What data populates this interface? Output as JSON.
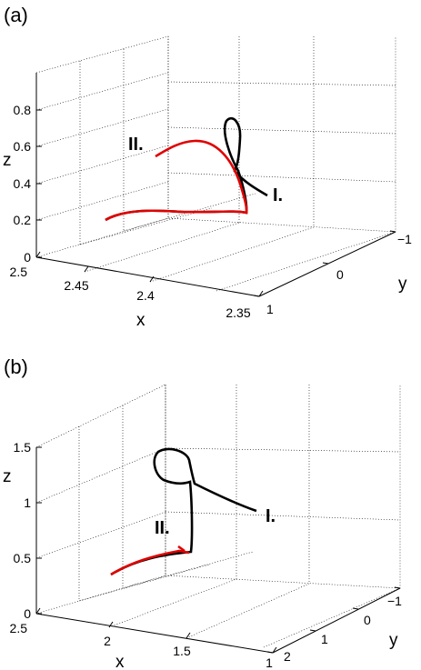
{
  "chart_data": [
    {
      "type": "line",
      "panel_label": "(a)",
      "xlabel": "x",
      "ylabel": "y",
      "zlabel": "z",
      "x_ticks": [
        "2.5",
        "2.45",
        "2.4",
        "2.35"
      ],
      "y_ticks": [
        "1",
        "0",
        "−1"
      ],
      "z_ticks": [
        "0",
        "0.2",
        "0.4",
        "0.6",
        "0.8"
      ],
      "xlim": [
        2.35,
        2.5
      ],
      "ylim": [
        -1,
        1
      ],
      "zlim": [
        0,
        0.8
      ],
      "grid": true,
      "series": [
        {
          "name": "I.",
          "color": "#000000",
          "points": [
            [
              2.48,
              0.6,
              0.2
            ],
            [
              2.36,
              0.2,
              0.23
            ],
            [
              2.35,
              0.1,
              0.6
            ],
            [
              2.36,
              0.3,
              0.74
            ],
            [
              2.34,
              -0.6,
              0.45
            ]
          ]
        },
        {
          "name": "II.",
          "color": "#e00000",
          "points": [
            [
              2.48,
              0.6,
              0.2
            ],
            [
              2.36,
              0.2,
              0.23
            ],
            [
              2.38,
              0.1,
              0.56
            ],
            [
              2.43,
              0.2,
              0.52
            ]
          ]
        }
      ]
    },
    {
      "type": "line",
      "panel_label": "(b)",
      "xlabel": "x",
      "ylabel": "y",
      "zlabel": "z",
      "x_ticks": [
        "2.5",
        "2",
        "1.5",
        "1"
      ],
      "y_ticks": [
        "2",
        "1",
        "0",
        "−1"
      ],
      "z_ticks": [
        "0",
        "0.5",
        "1",
        "1.5"
      ],
      "xlim": [
        1,
        2.5
      ],
      "ylim": [
        -1.5,
        2
      ],
      "zlim": [
        0,
        1.5
      ],
      "grid": true,
      "series": [
        {
          "name": "I.",
          "color": "#000000",
          "points": [
            [
              2.4,
              1.5,
              0.4
            ],
            [
              1.7,
              0.9,
              0.5
            ],
            [
              1.7,
              0.8,
              1.1
            ],
            [
              1.75,
              0.6,
              1.4
            ],
            [
              1.5,
              -0.6,
              1.0
            ]
          ]
        },
        {
          "name": "II.",
          "color": "#e00000",
          "points": [
            [
              2.4,
              1.5,
              0.4
            ],
            [
              1.8,
              1.0,
              0.5
            ]
          ]
        }
      ]
    }
  ]
}
